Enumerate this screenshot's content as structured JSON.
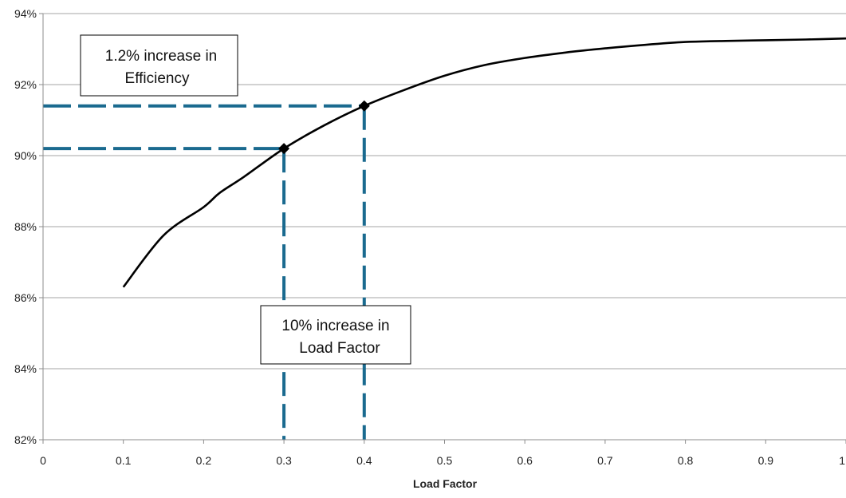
{
  "chart_data": {
    "type": "line",
    "title": "",
    "xlabel": "Load Factor",
    "ylabel": "",
    "xlim": [
      0,
      1
    ],
    "ylim": [
      82,
      94
    ],
    "grid": "horizontal",
    "x_ticks": [
      {
        "value": 0,
        "label": "0"
      },
      {
        "value": 0.1,
        "label": "0.1"
      },
      {
        "value": 0.2,
        "label": "0.2"
      },
      {
        "value": 0.3,
        "label": "0.3"
      },
      {
        "value": 0.4,
        "label": "0.4"
      },
      {
        "value": 0.5,
        "label": "0.5"
      },
      {
        "value": 0.6,
        "label": "0.6"
      },
      {
        "value": 0.7,
        "label": "0.7"
      },
      {
        "value": 0.8,
        "label": "0.8"
      },
      {
        "value": 0.9,
        "label": "0.9"
      },
      {
        "value": 1,
        "label": "1"
      }
    ],
    "y_ticks": [
      {
        "value": 82,
        "label": "82%"
      },
      {
        "value": 84,
        "label": "84%"
      },
      {
        "value": 86,
        "label": "86%"
      },
      {
        "value": 88,
        "label": "88%"
      },
      {
        "value": 90,
        "label": "90%"
      },
      {
        "value": 92,
        "label": "92%"
      },
      {
        "value": 94,
        "label": "94%"
      }
    ],
    "series": [
      {
        "color": "#000000",
        "x": [
          0.1,
          0.15,
          0.2,
          0.22,
          0.25,
          0.3,
          0.35,
          0.4,
          0.45,
          0.5,
          0.55,
          0.6,
          0.65,
          0.7,
          0.75,
          0.8,
          0.85,
          0.9,
          0.95,
          1.0
        ],
        "y": [
          86.3,
          87.75,
          88.55,
          88.95,
          89.4,
          90.2,
          90.85,
          91.4,
          91.85,
          92.25,
          92.55,
          92.75,
          92.9,
          93.02,
          93.12,
          93.2,
          93.23,
          93.25,
          93.27,
          93.3
        ]
      }
    ],
    "highlight_points": [
      {
        "x": 0.3,
        "y": 90.2
      },
      {
        "x": 0.4,
        "y": 91.4
      }
    ],
    "guide_color": "#1a6a8f",
    "annotations": [
      {
        "lines": [
          "1.2% increase in",
          "Efficiency"
        ]
      },
      {
        "lines": [
          "10% increase in",
          "Load Factor"
        ]
      }
    ]
  }
}
